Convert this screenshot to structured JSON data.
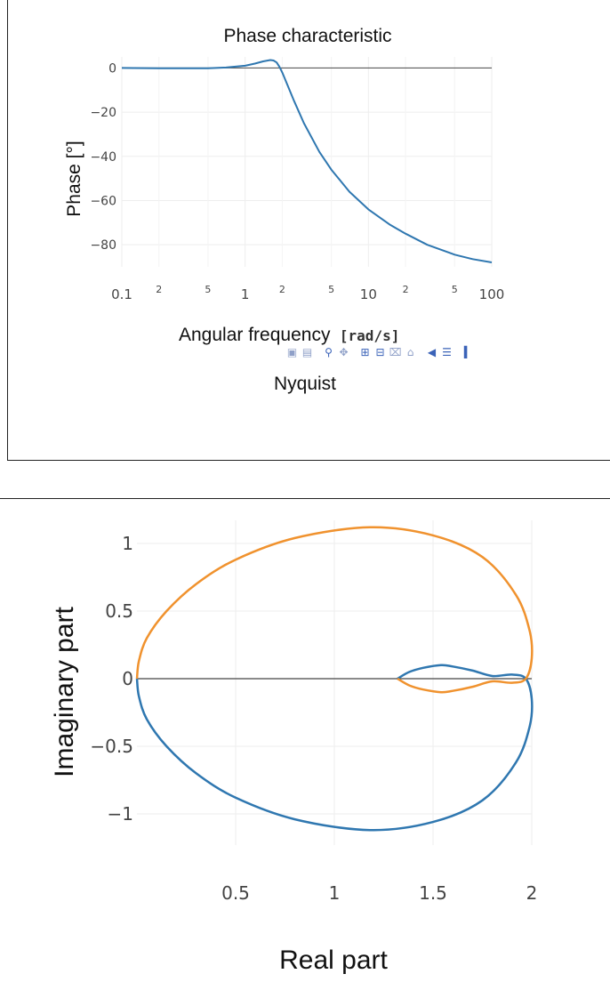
{
  "colors": {
    "phase_line": "#2f77b0",
    "nyquist_pos": "#2f77b0",
    "nyquist_neg": "#f0922e",
    "axis_zero": "#444444",
    "grid": "#eeeeee"
  },
  "modebar": {
    "icons": [
      "camera-icon",
      "save-icon",
      "zoom-icon",
      "pan-icon",
      "zoom-in-icon",
      "zoom-out-icon",
      "autoscale-icon",
      "home-icon",
      "hover-closest-icon",
      "hover-compare-icon",
      "plotly-logo-icon"
    ]
  },
  "nyquist_title": "Nyquist",
  "chart_data": [
    {
      "type": "line",
      "title": "Phase characteristic",
      "xlabel": "Angular frequency",
      "xlabel_unit": "[rad/s]",
      "ylabel": "Phase [°]",
      "xscale": "log",
      "xlim": [
        0.1,
        100
      ],
      "ylim": [
        -90,
        5
      ],
      "x_ticks": [
        0.1,
        1,
        10,
        100
      ],
      "x_tick_labels": [
        "0.1",
        "1",
        "10",
        "100"
      ],
      "x_minor_ticks": [
        0.2,
        0.5,
        2,
        5,
        20,
        50
      ],
      "x_minor_labels": [
        "2",
        "5",
        "2",
        "5",
        "2",
        "5"
      ],
      "y_ticks": [
        0,
        -20,
        -40,
        -60,
        -80
      ],
      "y_tick_labels": [
        "0",
        "−20",
        "−40",
        "−60",
        "−80"
      ],
      "grid": true,
      "series": [
        {
          "x": [
            0.1,
            0.2,
            0.3,
            0.5,
            0.7,
            1.0,
            1.2,
            1.4,
            1.6,
            1.7,
            1.8,
            1.9,
            2.0,
            2.2,
            2.5,
            3.0,
            4.0,
            5.0,
            7.0,
            10,
            15,
            20,
            30,
            50,
            70,
            100
          ],
          "y": [
            0,
            -0.1,
            -0.1,
            -0.1,
            0.2,
            1.0,
            2.0,
            3.0,
            3.6,
            3.4,
            2.5,
            0.5,
            -2.0,
            -7.5,
            -15,
            -25,
            -38,
            -46,
            -56,
            -64,
            -71,
            -75,
            -80,
            -84.5,
            -86.5,
            -88
          ]
        }
      ]
    },
    {
      "type": "line",
      "xlabel": "Real part",
      "ylabel": "Imaginary part",
      "xlim": [
        0,
        2
      ],
      "ylim": [
        -1.2,
        1.2
      ],
      "x_ticks": [
        0.5,
        1,
        1.5,
        2
      ],
      "x_tick_labels": [
        "0.5",
        "1",
        "1.5",
        "2"
      ],
      "y_ticks": [
        1,
        0.5,
        0,
        -0.5,
        -1
      ],
      "y_tick_labels": [
        "1",
        "0.5",
        "0",
        "−0.5",
        "−1"
      ],
      "grid": true,
      "series": [
        {
          "x": [
            0.0,
            0.01,
            0.05,
            0.15,
            0.3,
            0.5,
            0.8,
            1.18,
            1.5,
            1.75,
            1.92,
            1.99,
            2.0,
            1.97,
            1.9,
            1.8,
            1.7,
            1.6,
            1.54,
            1.45,
            1.38,
            1.32
          ],
          "y": [
            0.0,
            -0.13,
            -0.3,
            -0.5,
            -0.7,
            -0.88,
            -1.04,
            -1.12,
            -1.06,
            -0.9,
            -0.62,
            -0.35,
            -0.15,
            0.0,
            0.03,
            0.02,
            0.06,
            0.09,
            0.1,
            0.08,
            0.05,
            0.0
          ]
        },
        {
          "x": [
            0.0,
            0.01,
            0.05,
            0.15,
            0.3,
            0.5,
            0.8,
            1.18,
            1.5,
            1.75,
            1.92,
            1.99,
            2.0,
            1.97,
            1.9,
            1.8,
            1.7,
            1.6,
            1.54,
            1.45,
            1.38,
            1.32
          ],
          "y": [
            0.0,
            0.13,
            0.3,
            0.5,
            0.7,
            0.88,
            1.04,
            1.12,
            1.06,
            0.9,
            0.62,
            0.35,
            0.15,
            0.0,
            -0.03,
            -0.02,
            -0.06,
            -0.09,
            -0.1,
            -0.08,
            -0.05,
            0.0
          ]
        }
      ]
    }
  ]
}
